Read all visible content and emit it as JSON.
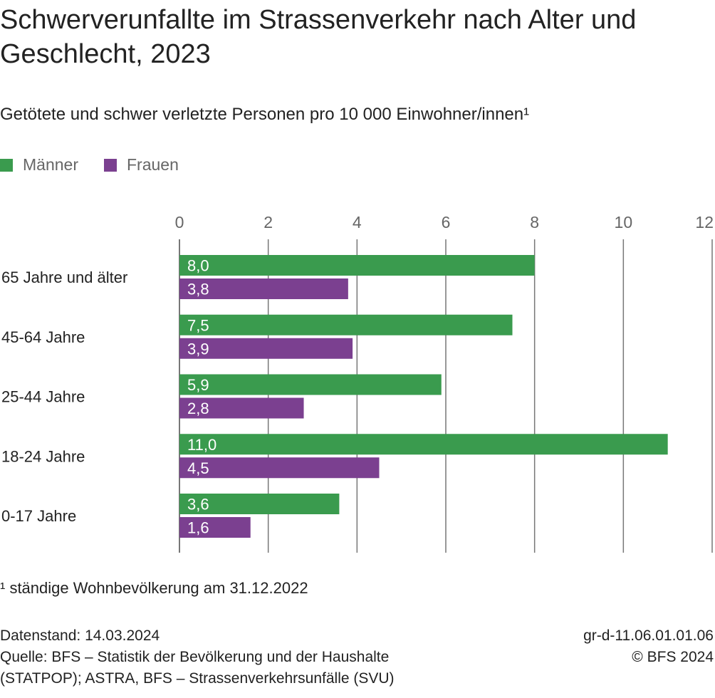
{
  "title": "Schwerverunfallte im Strassenverkehr nach Alter und Geschlecht, 2023",
  "subtitle": "Getötete und schwer verletzte Personen pro 10 000 Einwohner/innen¹",
  "legend": {
    "men": "Männer",
    "women": "Frauen"
  },
  "colors": {
    "men": "#3a9b4e",
    "women": "#7b4090",
    "grid": "#777777",
    "tick_text": "#666666"
  },
  "footnote": "¹ ständige Wohnbevölkerung am 31.12.2022",
  "meta": {
    "date": "Datenstand: 14.03.2024",
    "source_line1": "Quelle: BFS – Statistik der Bevölkerung und der Haushalte",
    "source_line2": "(STATPOP); ASTRA, BFS – Strassenverkehrsunfälle (SVU)",
    "code": "gr-d-11.06.01.01.06",
    "copyright": "© BFS 2024"
  },
  "chart_data": {
    "type": "bar",
    "orientation": "horizontal",
    "title": "Schwerverunfallte im Strassenverkehr nach Alter und Geschlecht, 2023",
    "xlabel": "",
    "ylabel": "",
    "xlim": [
      0,
      12
    ],
    "xticks": [
      0,
      2,
      4,
      6,
      8,
      10,
      12
    ],
    "xtick_labels": [
      "0",
      "2",
      "4",
      "6",
      "8",
      "10",
      "12"
    ],
    "categories": [
      "65 Jahre und älter",
      "45-64 Jahre",
      "25-44 Jahre",
      "18-24 Jahre",
      "0-17 Jahre"
    ],
    "series": [
      {
        "name": "Männer",
        "key": "men",
        "values": [
          8.0,
          7.5,
          5.9,
          11.0,
          3.6
        ],
        "labels": [
          "8,0",
          "7,5",
          "5,9",
          "11,0",
          "3,6"
        ]
      },
      {
        "name": "Frauen",
        "key": "women",
        "values": [
          3.8,
          3.9,
          2.8,
          4.5,
          1.6
        ],
        "labels": [
          "3,8",
          "3,9",
          "2,8",
          "4,5",
          "1,6"
        ]
      }
    ],
    "legend_position": "top-left",
    "grid": true
  }
}
